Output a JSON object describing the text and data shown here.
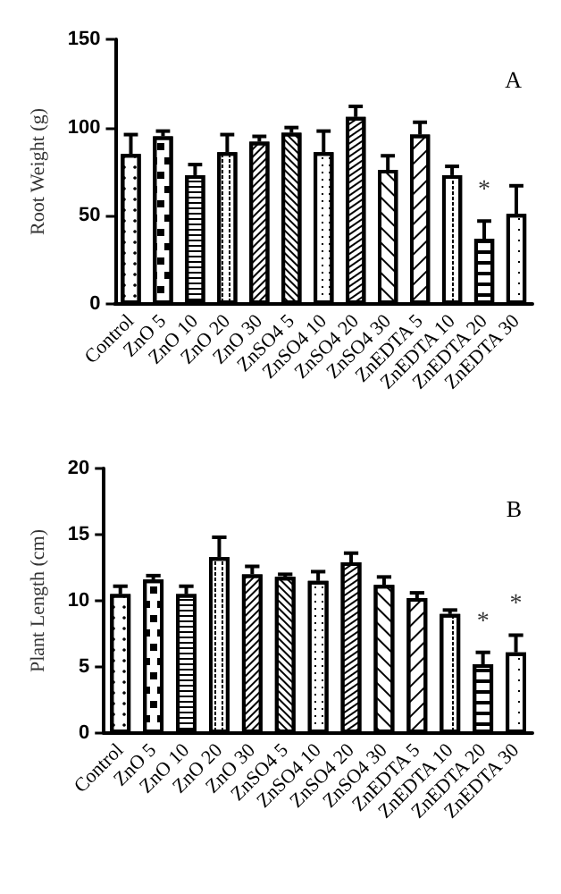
{
  "chart_data": [
    {
      "type": "bar",
      "ylabel": "Root Weight (g)",
      "categories": [
        "Control",
        "ZnO 5",
        "ZnO 10",
        "ZnO 20",
        "ZnO 30",
        "ZnSO4 5",
        "ZnSO4 10",
        "ZnSO4 20",
        "ZnSO4 30",
        "ZnEDTA 5",
        "ZnEDTA 10",
        "ZnEDTA 20",
        "ZnEDTA 30"
      ],
      "values": [
        85,
        95,
        73,
        86,
        92,
        97,
        86,
        106,
        76,
        96,
        73,
        37,
        51
      ],
      "errors": [
        11,
        3,
        6,
        10,
        3,
        3,
        12,
        6,
        8,
        7,
        5,
        10,
        16
      ],
      "color": "#ffffff",
      "ylim": [
        0,
        150
      ],
      "yticks": [
        0,
        50,
        100,
        150
      ],
      "annotations": [
        "A",
        "*"
      ]
    },
    {
      "type": "bar",
      "ylabel": "Plant Length (cm)",
      "categories": [
        "Control",
        "ZnO 5",
        "ZnO 10",
        "ZnO 20",
        "ZnO 30",
        "ZnSO4 5",
        "ZnSO4 10",
        "ZnSO4 20",
        "ZnSO4 30",
        "ZnEDTA 5",
        "ZnEDTA 10",
        "ZnEDTA 20",
        "ZnEDTA 30"
      ],
      "values": [
        10.5,
        11.6,
        10.5,
        13.3,
        12,
        11.8,
        11.5,
        12.9,
        11.2,
        10.2,
        9,
        5.2,
        6.1
      ],
      "errors": [
        0.6,
        0.3,
        0.6,
        1.5,
        0.6,
        0.2,
        0.7,
        0.7,
        0.6,
        0.4,
        0.3,
        0.9,
        1.3
      ],
      "color": "#ffffff",
      "ylim": [
        0,
        20
      ],
      "yticks": [
        0,
        5,
        10,
        15,
        20
      ],
      "annotations": [
        "B",
        "*",
        "*"
      ]
    }
  ]
}
